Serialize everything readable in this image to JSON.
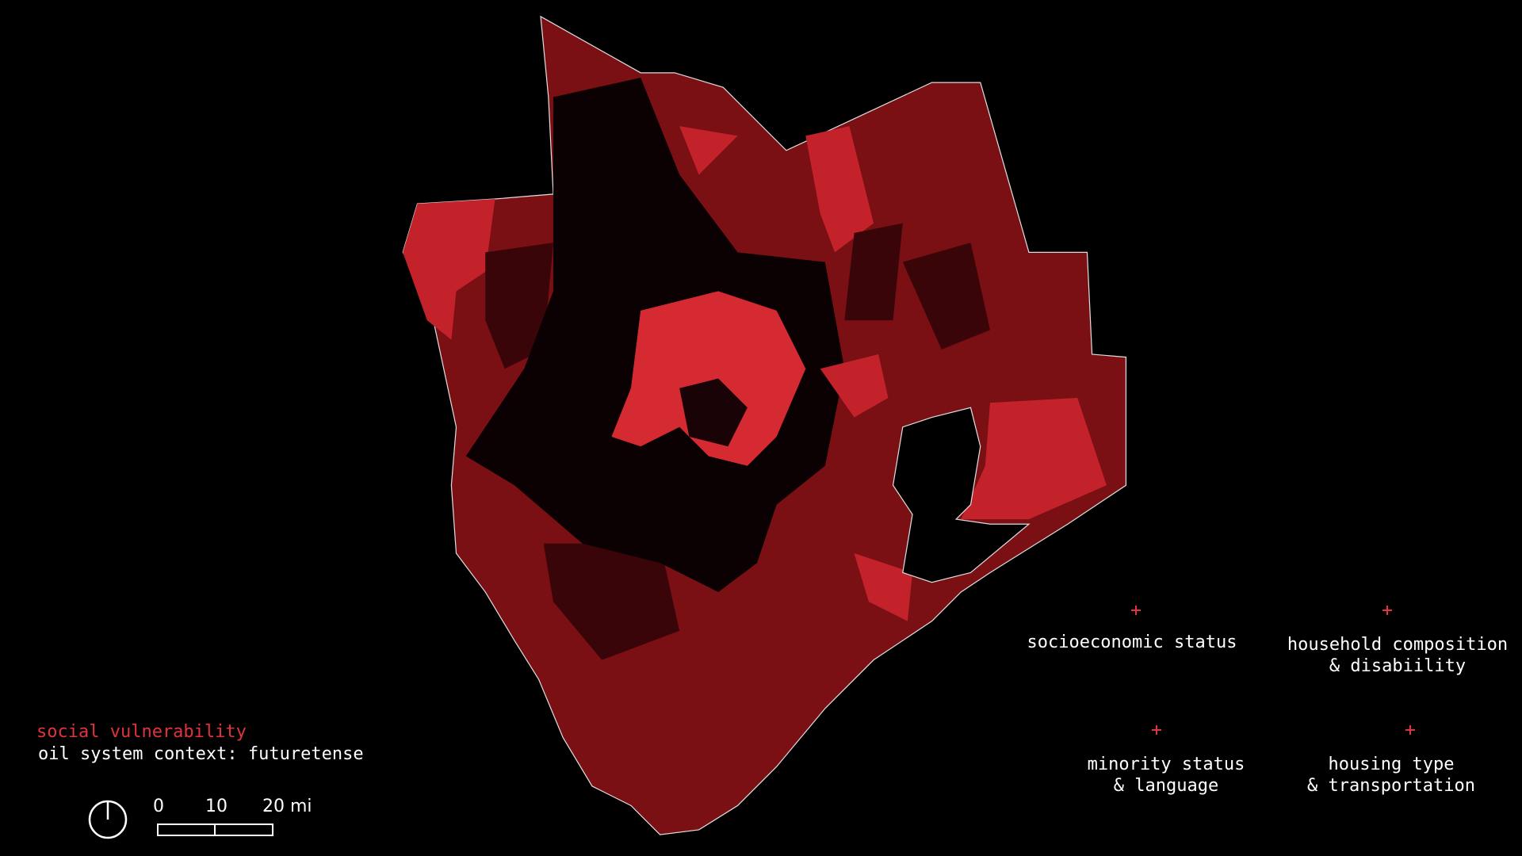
{
  "title": {
    "heading": "social vulnerability",
    "subheading": "oil system context: futuretense"
  },
  "scale_bar": {
    "labels": [
      "0",
      "10",
      "20 mi"
    ]
  },
  "legend": {
    "items": [
      {
        "lines": [
          "socioeconomic status"
        ]
      },
      {
        "lines": [
          "household composition",
          "& disabiility"
        ]
      },
      {
        "lines": [
          "minority status",
          "& language"
        ]
      },
      {
        "lines": [
          "housing type",
          "& transportation"
        ]
      }
    ]
  }
}
